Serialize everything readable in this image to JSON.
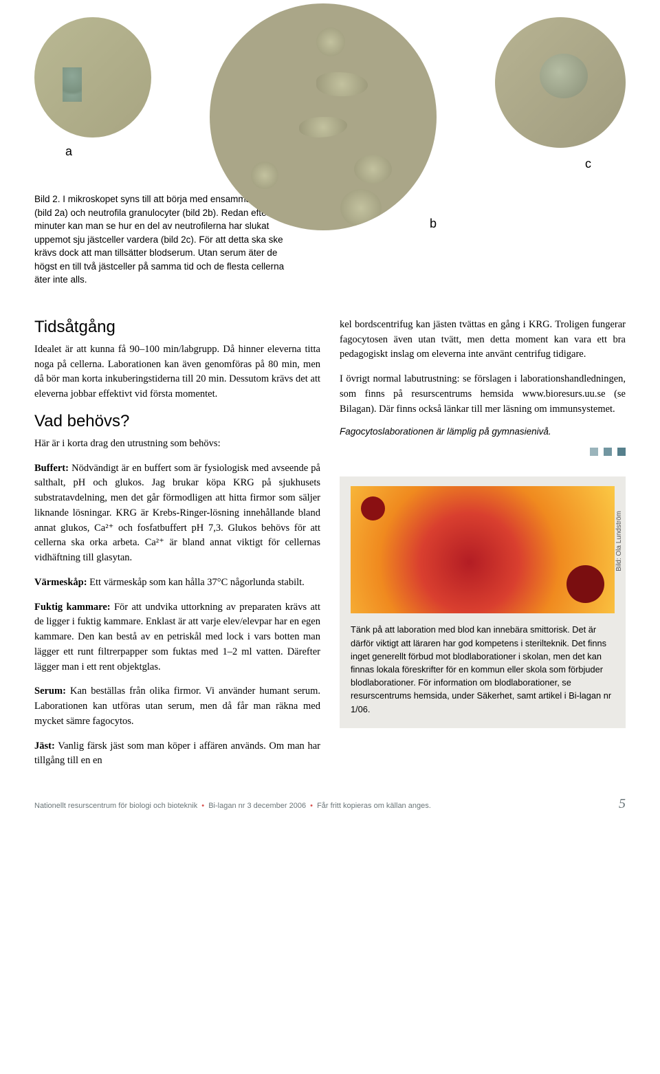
{
  "images": {
    "a_label": "a",
    "b_label": "b",
    "c_label": "c"
  },
  "caption": "Bild 2. I mikroskopet syns till att börja med ensamma jästceller (bild 2a) och neutrofila granulocyter (bild 2b). Redan efter 25 minuter kan man se hur en del av neutrofilerna har slukat uppemot sju jästceller vardera (bild 2c). För att detta ska ske krävs dock att man tillsätter blodserum. Utan serum äter de högst en till två jästceller på samma tid och de flesta cellerna äter inte alls.",
  "sections": {
    "tidsatgang_title": "Tidsåtgång",
    "tidsatgang_body": "Idealet är att kunna få 90–100 min/labgrupp. Då hinner eleverna titta noga på cellerna. Laborationen kan även genomföras på 80 min, men då bör man korta inkuberingstiderna till 20 min. Dessutom krävs det att eleverna jobbar effektivt vid första momentet.",
    "vad_title": "Vad behövs?",
    "vad_intro": "Här är i korta drag den utrustning som behövs:",
    "buffert_label": "Buffert:",
    "buffert_body": " Nödvändigt är en buffert som är fysiologisk med avseende på salthalt, pH och glukos. Jag brukar köpa KRG på sjukhusets substratavdelning, men det går förmodligen att hitta firmor som säljer liknande lösningar. KRG är Krebs-Ringer-lösning innehållande bland annat glukos, Ca²⁺ och fosfatbuffert pH 7,3. Glukos behövs för att cellerna ska orka arbeta. Ca²⁺ är bland annat viktigt för cellernas vidhäftning till glasytan.",
    "varmeskap_label": "Värmeskåp:",
    "varmeskap_body": " Ett värmeskåp som kan hålla 37°C någorlunda stabilt.",
    "fuktig_label": "Fuktig kammare:",
    "fuktig_body": " För att undvika uttorkning av preparaten krävs att de ligger i fuktig kammare. Enklast är att varje elev/elevpar har en egen kammare. Den kan bestå av en petriskål med lock i vars botten man lägger ett runt filtrerpapper som fuktas med 1–2 ml vatten. Därefter lägger man i ett rent objektglas.",
    "serum_label": "Serum:",
    "serum_body": " Kan beställas från olika firmor. Vi använder humant serum. Laborationen kan utföras utan serum, men då får man räkna med mycket sämre fagocytos.",
    "jast_label": "Jäst:",
    "jast_body_1": " Vanlig färsk jäst som man köper i affären används. Om man har tillgång till en en",
    "jast_body_2": "kel bordscentrifug kan jästen tvättas en gång i KRG. Troligen fungerar fagocytosen även utan tvätt, men detta moment kan vara ett bra pedagogiskt inslag om eleverna inte använt centrifug tidigare.",
    "ovrigt": "I övrigt normal labutrustning: se förslagen i laborationshandledningen, som finns på resurscentrums hemsida www.bioresurs.uu.se (se Bilagan). Där finns också länkar till mer läsning om immunsystemet.",
    "level_note": "Fagocytoslaborationen är lämplig på gymnasienivå."
  },
  "squares_colors": [
    "#9ab4bb",
    "#7296a1",
    "#56808c"
  ],
  "blood_box": {
    "credit": "Bild: Ola Lundström",
    "text": "Tänk på att laboration med blod kan innebära smittorisk. Det är därför viktigt att läraren har god kompetens i sterilteknik. Det finns inget generellt förbud mot blodlaborationer i skolan, men det kan finnas lokala föreskrifter för en kommun eller skola som förbjuder blodlaborationer. För information om blodlaborationer, se resurscentrums hemsida, under Säkerhet, samt artikel i Bi-lagan nr 1/06."
  },
  "footer": {
    "org": "Nationellt resurscentrum för biologi och bioteknik",
    "issue": "Bi-lagan nr 3 december 2006",
    "license": "Får fritt kopieras om källan anges.",
    "page": "5"
  }
}
